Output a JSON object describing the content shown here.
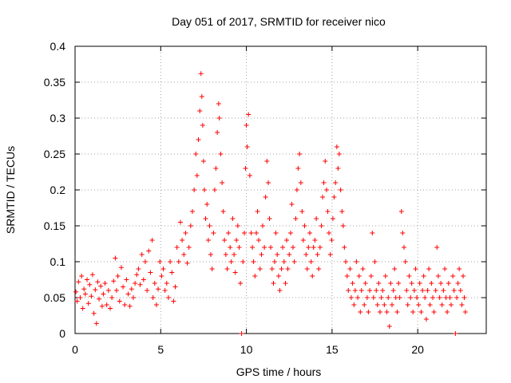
{
  "chart_data": {
    "type": "scatter",
    "title": "Day 051 of 2017, SRMTID for receiver nico",
    "xlabel": "GPS time / hours",
    "ylabel": "SRMTID / TECUs",
    "xlim": [
      0,
      24
    ],
    "ylim": [
      0,
      0.4
    ],
    "xticks": [
      0,
      5,
      10,
      15,
      20
    ],
    "xtick_labels": [
      "0",
      "5",
      "10",
      "15",
      "20"
    ],
    "yticks": [
      0,
      0.05,
      0.1,
      0.15,
      0.2,
      0.25,
      0.3,
      0.35,
      0.4
    ],
    "ytick_labels": [
      "0",
      "0.05",
      "0.1",
      "0.15",
      "0.2",
      "0.25",
      "0.3",
      "0.35",
      "0.4"
    ],
    "grid": true,
    "marker": "+",
    "color": "#ff0000",
    "series": [
      {
        "name": "SRMTID",
        "points": [
          [
            0.05,
            0.058
          ],
          [
            0.12,
            0.045
          ],
          [
            0.2,
            0.072
          ],
          [
            0.3,
            0.05
          ],
          [
            0.38,
            0.08
          ],
          [
            0.45,
            0.035
          ],
          [
            0.52,
            0.062
          ],
          [
            0.6,
            0.055
          ],
          [
            0.7,
            0.075
          ],
          [
            0.78,
            0.042
          ],
          [
            0.85,
            0.068
          ],
          [
            0.95,
            0.052
          ],
          [
            1.02,
            0.082
          ],
          [
            1.1,
            0.028
          ],
          [
            1.18,
            0.061
          ],
          [
            1.25,
            0.014
          ],
          [
            1.32,
            0.072
          ],
          [
            1.4,
            0.048
          ],
          [
            1.5,
            0.066
          ],
          [
            1.58,
            0.038
          ],
          [
            1.65,
            0.055
          ],
          [
            1.75,
            0.07
          ],
          [
            1.85,
            0.04
          ],
          [
            1.95,
            0.06
          ],
          [
            2.05,
            0.035
          ],
          [
            2.15,
            0.05
          ],
          [
            2.25,
            0.073
          ],
          [
            2.35,
            0.105
          ],
          [
            2.42,
            0.06
          ],
          [
            2.5,
            0.08
          ],
          [
            2.6,
            0.045
          ],
          [
            2.7,
            0.092
          ],
          [
            2.8,
            0.065
          ],
          [
            2.9,
            0.04
          ],
          [
            3.0,
            0.075
          ],
          [
            3.1,
            0.055
          ],
          [
            3.2,
            0.038
          ],
          [
            3.3,
            0.062
          ],
          [
            3.4,
            0.05
          ],
          [
            3.5,
            0.07
          ],
          [
            3.6,
            0.082
          ],
          [
            3.7,
            0.09
          ],
          [
            3.8,
            0.068
          ],
          [
            3.9,
            0.11
          ],
          [
            4.0,
            0.075
          ],
          [
            4.1,
            0.1
          ],
          [
            4.2,
            0.06
          ],
          [
            4.3,
            0.115
          ],
          [
            4.4,
            0.085
          ],
          [
            4.5,
            0.13
          ],
          [
            4.55,
            0.05
          ],
          [
            4.65,
            0.07
          ],
          [
            4.75,
            0.04
          ],
          [
            4.85,
            0.062
          ],
          [
            4.95,
            0.1
          ],
          [
            5.05,
            0.08
          ],
          [
            5.15,
            0.09
          ],
          [
            5.25,
            0.06
          ],
          [
            5.35,
            0.07
          ],
          [
            5.45,
            0.05
          ],
          [
            5.55,
            0.1
          ],
          [
            5.65,
            0.085
          ],
          [
            5.75,
            0.045
          ],
          [
            5.85,
            0.065
          ],
          [
            5.95,
            0.12
          ],
          [
            6.05,
            0.1
          ],
          [
            6.15,
            0.155
          ],
          [
            6.25,
            0.13
          ],
          [
            6.35,
            0.11
          ],
          [
            6.45,
            0.14
          ],
          [
            6.55,
            0.098
          ],
          [
            6.65,
            0.12
          ],
          [
            6.75,
            0.15
          ],
          [
            6.85,
            0.17
          ],
          [
            6.95,
            0.2
          ],
          [
            7.05,
            0.25
          ],
          [
            7.12,
            0.22
          ],
          [
            7.2,
            0.27
          ],
          [
            7.28,
            0.31
          ],
          [
            7.35,
            0.362
          ],
          [
            7.4,
            0.33
          ],
          [
            7.45,
            0.29
          ],
          [
            7.5,
            0.24
          ],
          [
            7.55,
            0.2
          ],
          [
            7.62,
            0.16
          ],
          [
            7.7,
            0.18
          ],
          [
            7.78,
            0.13
          ],
          [
            7.85,
            0.15
          ],
          [
            7.92,
            0.11
          ],
          [
            8.0,
            0.09
          ],
          [
            8.08,
            0.14
          ],
          [
            8.15,
            0.2
          ],
          [
            8.22,
            0.23
          ],
          [
            8.3,
            0.28
          ],
          [
            8.38,
            0.32
          ],
          [
            8.42,
            0.3
          ],
          [
            8.5,
            0.25
          ],
          [
            8.58,
            0.21
          ],
          [
            8.65,
            0.17
          ],
          [
            8.72,
            0.13
          ],
          [
            8.8,
            0.11
          ],
          [
            8.88,
            0.09
          ],
          [
            8.95,
            0.14
          ],
          [
            9.05,
            0.12
          ],
          [
            9.12,
            0.1
          ],
          [
            9.2,
            0.16
          ],
          [
            9.28,
            0.11
          ],
          [
            9.35,
            0.085
          ],
          [
            9.42,
            0.13
          ],
          [
            9.5,
            0.15
          ],
          [
            9.58,
            0.12
          ],
          [
            9.65,
            0.07
          ],
          [
            9.72,
            0.0
          ],
          [
            9.8,
            0.1
          ],
          [
            9.88,
            0.14
          ],
          [
            9.95,
            0.23
          ],
          [
            10.0,
            0.29
          ],
          [
            10.05,
            0.26
          ],
          [
            10.12,
            0.305
          ],
          [
            10.2,
            0.22
          ],
          [
            10.28,
            0.14
          ],
          [
            10.35,
            0.12
          ],
          [
            10.42,
            0.1
          ],
          [
            10.5,
            0.08
          ],
          [
            10.58,
            0.14
          ],
          [
            10.65,
            0.17
          ],
          [
            10.72,
            0.13
          ],
          [
            10.8,
            0.09
          ],
          [
            10.88,
            0.11
          ],
          [
            10.95,
            0.15
          ],
          [
            11.05,
            0.12
          ],
          [
            11.12,
            0.19
          ],
          [
            11.2,
            0.24
          ],
          [
            11.28,
            0.21
          ],
          [
            11.35,
            0.16
          ],
          [
            11.42,
            0.12
          ],
          [
            11.5,
            0.09
          ],
          [
            11.58,
            0.07
          ],
          [
            11.65,
            0.1
          ],
          [
            11.72,
            0.14
          ],
          [
            11.8,
            0.11
          ],
          [
            11.88,
            0.08
          ],
          [
            11.95,
            0.06
          ],
          [
            12.05,
            0.09
          ],
          [
            12.12,
            0.12
          ],
          [
            12.2,
            0.1
          ],
          [
            12.28,
            0.07
          ],
          [
            12.35,
            0.13
          ],
          [
            12.42,
            0.09
          ],
          [
            12.5,
            0.11
          ],
          [
            12.58,
            0.14
          ],
          [
            12.65,
            0.18
          ],
          [
            12.72,
            0.12
          ],
          [
            12.8,
            0.1
          ],
          [
            12.88,
            0.16
          ],
          [
            12.95,
            0.2
          ],
          [
            13.02,
            0.23
          ],
          [
            13.1,
            0.25
          ],
          [
            13.18,
            0.21
          ],
          [
            13.25,
            0.17
          ],
          [
            13.32,
            0.13
          ],
          [
            13.4,
            0.15
          ],
          [
            13.48,
            0.11
          ],
          [
            13.55,
            0.09
          ],
          [
            13.62,
            0.12
          ],
          [
            13.7,
            0.14
          ],
          [
            13.78,
            0.1
          ],
          [
            13.85,
            0.08
          ],
          [
            13.92,
            0.12
          ],
          [
            14.0,
            0.13
          ],
          [
            14.08,
            0.16
          ],
          [
            14.15,
            0.11
          ],
          [
            14.22,
            0.09
          ],
          [
            14.3,
            0.12
          ],
          [
            14.38,
            0.15
          ],
          [
            14.45,
            0.19
          ],
          [
            14.52,
            0.21
          ],
          [
            14.6,
            0.24
          ],
          [
            14.68,
            0.2
          ],
          [
            14.75,
            0.17
          ],
          [
            14.82,
            0.14
          ],
          [
            14.9,
            0.11
          ],
          [
            14.98,
            0.13
          ],
          [
            15.05,
            0.16
          ],
          [
            15.12,
            0.19
          ],
          [
            15.2,
            0.21
          ],
          [
            15.28,
            0.26
          ],
          [
            15.35,
            0.23
          ],
          [
            15.42,
            0.25
          ],
          [
            15.5,
            0.2
          ],
          [
            15.58,
            0.17
          ],
          [
            15.65,
            0.15
          ],
          [
            15.72,
            0.12
          ],
          [
            15.8,
            0.1
          ],
          [
            15.88,
            0.08
          ],
          [
            15.95,
            0.06
          ],
          [
            16.05,
            0.09
          ],
          [
            16.12,
            0.05
          ],
          [
            16.2,
            0.07
          ],
          [
            16.28,
            0.04
          ],
          [
            16.35,
            0.06
          ],
          [
            16.42,
            0.1
          ],
          [
            16.5,
            0.05
          ],
          [
            16.58,
            0.08
          ],
          [
            16.65,
            0.03
          ],
          [
            16.72,
            0.06
          ],
          [
            16.8,
            0.09
          ],
          [
            16.88,
            0.04
          ],
          [
            16.95,
            0.07
          ],
          [
            17.05,
            0.05
          ],
          [
            17.12,
            0.03
          ],
          [
            17.2,
            0.06
          ],
          [
            17.28,
            0.08
          ],
          [
            17.35,
            0.14
          ],
          [
            17.42,
            0.05
          ],
          [
            17.5,
            0.1
          ],
          [
            17.58,
            0.06
          ],
          [
            17.65,
            0.04
          ],
          [
            17.72,
            0.07
          ],
          [
            17.8,
            0.03
          ],
          [
            17.88,
            0.05
          ],
          [
            17.95,
            0.06
          ],
          [
            18.05,
            0.04
          ],
          [
            18.12,
            0.08
          ],
          [
            18.2,
            0.03
          ],
          [
            18.28,
            0.05
          ],
          [
            18.35,
            0.01
          ],
          [
            18.42,
            0.07
          ],
          [
            18.5,
            0.04
          ],
          [
            18.58,
            0.06
          ],
          [
            18.65,
            0.09
          ],
          [
            18.72,
            0.05
          ],
          [
            18.8,
            0.03
          ],
          [
            18.88,
            0.07
          ],
          [
            18.95,
            0.05
          ],
          [
            19.05,
            0.17
          ],
          [
            19.12,
            0.14
          ],
          [
            19.2,
            0.12
          ],
          [
            19.28,
            0.1
          ],
          [
            19.35,
            0.06
          ],
          [
            19.42,
            0.04
          ],
          [
            19.5,
            0.08
          ],
          [
            19.58,
            0.05
          ],
          [
            19.65,
            0.07
          ],
          [
            19.72,
            0.03
          ],
          [
            19.8,
            0.06
          ],
          [
            19.88,
            0.09
          ],
          [
            19.95,
            0.05
          ],
          [
            20.05,
            0.04
          ],
          [
            20.12,
            0.07
          ],
          [
            20.2,
            0.03
          ],
          [
            20.28,
            0.06
          ],
          [
            20.35,
            0.08
          ],
          [
            20.42,
            0.05
          ],
          [
            20.5,
            0.02
          ],
          [
            20.58,
            0.06
          ],
          [
            20.65,
            0.09
          ],
          [
            20.72,
            0.04
          ],
          [
            20.8,
            0.07
          ],
          [
            20.88,
            0.05
          ],
          [
            20.95,
            0.03
          ],
          [
            21.05,
            0.06
          ],
          [
            21.12,
            0.12
          ],
          [
            21.2,
            0.08
          ],
          [
            21.28,
            0.05
          ],
          [
            21.35,
            0.07
          ],
          [
            21.42,
            0.04
          ],
          [
            21.5,
            0.06
          ],
          [
            21.58,
            0.09
          ],
          [
            21.65,
            0.05
          ],
          [
            21.72,
            0.03
          ],
          [
            21.8,
            0.07
          ],
          [
            21.88,
            0.05
          ],
          [
            21.95,
            0.04
          ],
          [
            22.05,
            0.08
          ],
          [
            22.12,
            0.06
          ],
          [
            22.2,
            0.0
          ],
          [
            22.28,
            0.05
          ],
          [
            22.35,
            0.07
          ],
          [
            22.42,
            0.09
          ],
          [
            22.5,
            0.06
          ],
          [
            22.58,
            0.04
          ],
          [
            22.65,
            0.08
          ],
          [
            22.72,
            0.05
          ],
          [
            22.78,
            0.03
          ]
        ]
      }
    ]
  }
}
